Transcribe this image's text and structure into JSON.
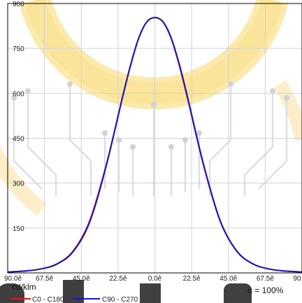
{
  "chart_data": {
    "type": "line",
    "title": "",
    "unit_label": "cd/klm",
    "yticks": [
      150,
      300,
      450,
      600,
      750,
      900
    ],
    "ylim": [
      0,
      900
    ],
    "xlim": [
      -90,
      90
    ],
    "xticks": [
      {
        "value": -90,
        "label": "90.0ê"
      },
      {
        "value": -67.5,
        "label": "67.5ê"
      },
      {
        "value": -45,
        "label": "45.0ê"
      },
      {
        "value": -22.5,
        "label": "22.5ê"
      },
      {
        "value": 0,
        "label": "0.0ê"
      },
      {
        "value": 22.5,
        "label": "22.5ê"
      },
      {
        "value": 45,
        "label": "45.0ê"
      },
      {
        "value": 67.5,
        "label": "67.5ê"
      },
      {
        "value": 90,
        "label": "90.0ê"
      }
    ],
    "grid": true,
    "legend_position": "bottom-left",
    "intensity_note": "ἀ = 100%",
    "series": [
      {
        "name": "C0 - C180",
        "color": "#e8141c",
        "x": [
          -90,
          -80,
          -70,
          -60,
          -50,
          -40,
          -30,
          -20,
          -15,
          -10,
          -5,
          0,
          5,
          10,
          15,
          20,
          30,
          40,
          50,
          60,
          70,
          80,
          90
        ],
        "y": [
          3,
          6,
          13,
          30,
          73,
          172,
          355,
          583,
          692,
          783,
          838,
          853,
          838,
          783,
          692,
          583,
          355,
          172,
          73,
          30,
          13,
          6,
          3
        ]
      },
      {
        "name": "C90 - C270",
        "color": "#1414c8",
        "x": [
          -90,
          -80,
          -70,
          -60,
          -50,
          -40,
          -30,
          -20,
          -15,
          -10,
          -5,
          0,
          5,
          10,
          15,
          20,
          30,
          40,
          50,
          60,
          70,
          80,
          90
        ],
        "y": [
          3,
          6,
          13,
          29,
          71,
          168,
          352,
          581,
          690,
          782,
          838,
          853,
          839,
          785,
          696,
          587,
          358,
          174,
          74,
          30,
          13,
          6,
          3
        ]
      }
    ]
  }
}
